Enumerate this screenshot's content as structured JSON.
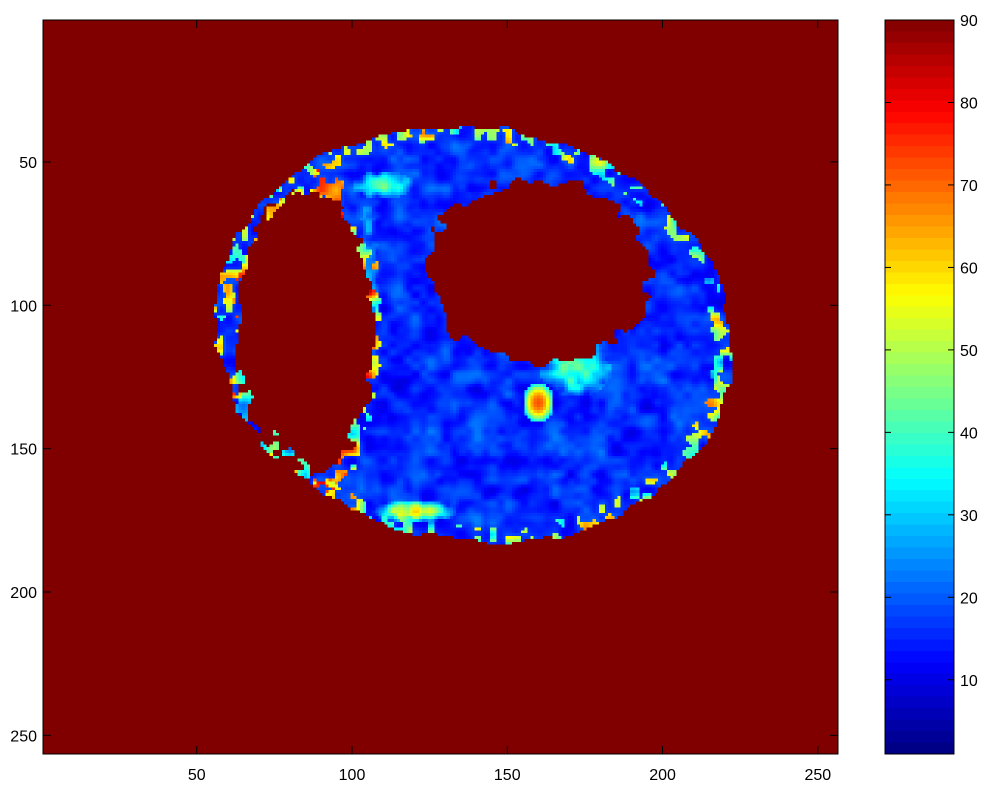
{
  "chart_data": {
    "type": "heatmap",
    "title": "",
    "xlabel": "",
    "ylabel": "",
    "x_range": [
      0.5,
      256.5
    ],
    "y_range": [
      0.5,
      256.5
    ],
    "y_reversed": true,
    "x_ticks": [
      50,
      100,
      150,
      200,
      250
    ],
    "y_ticks": [
      50,
      100,
      150,
      200,
      250
    ],
    "colorbar": {
      "colormap": "jet",
      "range": [
        1,
        90
      ],
      "ticks": [
        10,
        20,
        30,
        40,
        50,
        60,
        70,
        80,
        90
      ]
    },
    "background_value": 90,
    "regions": [
      {
        "name": "myocardium-outer",
        "value": 8,
        "center": [
          139,
          110
        ],
        "radius": [
          84,
          72
        ]
      },
      {
        "name": "right-cavity",
        "value": 90,
        "center": [
          85,
          110
        ],
        "radius": [
          22,
          50
        ]
      },
      {
        "name": "left-cavity",
        "value": 90,
        "center": [
          160,
          88
        ],
        "radius": [
          36,
          32
        ]
      },
      {
        "name": "septal-band",
        "value": 28,
        "center": [
          105,
          95
        ],
        "radius": [
          4,
          30
        ]
      },
      {
        "name": "hotspot-lateral",
        "value": 72,
        "center": [
          160,
          134
        ],
        "radius": [
          5,
          7
        ]
      },
      {
        "name": "warm-lateral",
        "value": 42,
        "center": [
          172,
          122
        ],
        "radius": [
          12,
          10
        ]
      },
      {
        "name": "warm-inferior",
        "value": 55,
        "center": [
          120,
          172
        ],
        "radius": [
          14,
          4
        ]
      },
      {
        "name": "warm-anterior",
        "value": 40,
        "center": [
          110,
          58
        ],
        "radius": [
          10,
          5
        ]
      }
    ]
  }
}
